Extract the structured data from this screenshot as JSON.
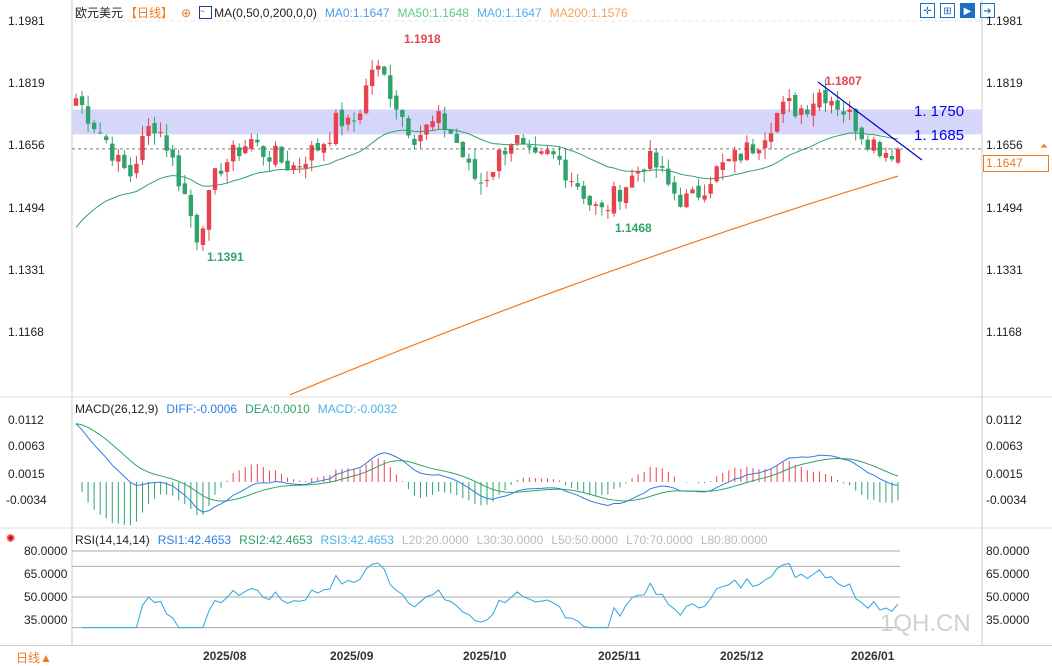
{
  "header": {
    "symbol": "欧元美元",
    "period": "【日线】",
    "ma_title": "MA(0,50,0,200,0,0)",
    "ma0": "MA0:1.1647",
    "ma50": "MA50:1.1648",
    "ma0b": "MA0:1.1647",
    "ma200": "MA200:1.1576"
  },
  "toolbar": [
    "crosshair-icon",
    "zoom-range-icon",
    "play-icon",
    "exit-icon"
  ],
  "colors": {
    "up": "#e8424f",
    "down": "#2fa36b",
    "ma50": "#2fa36b",
    "ma200": "#f07a1e",
    "zone": "#d6d6fb",
    "trend": "#0000cc",
    "diff": "#2d7fe6",
    "dea": "#2fa36b",
    "rsi": "#2aa6e0"
  },
  "chart_data": [
    {
      "type": "candlestick",
      "title": "欧元美元",
      "yticks": [
        "1.1981",
        "1.1819",
        "1.1656",
        "1.1494",
        "1.1331",
        "1.1168"
      ],
      "ylim": [
        1.098,
        1.2
      ],
      "close_samples": [
        1.178,
        1.174,
        1.17,
        1.166,
        1.16,
        1.158,
        1.166,
        1.172,
        1.168,
        1.16,
        1.152,
        1.142,
        1.15,
        1.16,
        1.162,
        1.165,
        1.167,
        1.164,
        1.163,
        1.161,
        1.16,
        1.163,
        1.165,
        1.168,
        1.173,
        1.17,
        1.176,
        1.186,
        1.184,
        1.178,
        1.172,
        1.168,
        1.17,
        1.172,
        1.17,
        1.165,
        1.158,
        1.156,
        1.16,
        1.165,
        1.168,
        1.163,
        1.161,
        1.163,
        1.162,
        1.158,
        1.155,
        1.15,
        1.148,
        1.152,
        1.155,
        1.158,
        1.162,
        1.16,
        1.155,
        1.152,
        1.151,
        1.154,
        1.158,
        1.16,
        1.162,
        1.164,
        1.166,
        1.17,
        1.174,
        1.176,
        1.175,
        1.177,
        1.18,
        1.178,
        1.175,
        1.172,
        1.168,
        1.166,
        1.164,
        1.1647
      ],
      "annotations": {
        "high1": "1.1918",
        "low1": "1.1391",
        "low2": "1.1468",
        "high2": "1.1807",
        "zone_top": "1. 1750",
        "zone_bottom": "1. 1685",
        "last_price": "1.1647"
      },
      "ma200_range": [
        1.1005,
        1.1576
      ]
    },
    {
      "type": "line",
      "title": "MACD(26,12,9)",
      "diff": "DIFF:-0.0006",
      "dea": "DEA:0.0010",
      "macd": "MACD:-0.0032",
      "yticks": [
        "0.0112",
        "0.0063",
        "0.0015",
        "-0.0034"
      ]
    },
    {
      "type": "line",
      "title": "RSI(14,14,14)",
      "rsi1": "RSI1:42.4653",
      "rsi2": "RSI2:42.4653",
      "rsi3": "RSI3:42.4653",
      "l20": "L20:20.0000",
      "l30": "L30:30.0000",
      "l50": "L50:50.0000",
      "l70": "L70:70.0000",
      "l80": "L80:80.0000",
      "yticks": [
        "80.0000",
        "65.0000",
        "50.0000",
        "35.0000"
      ]
    }
  ],
  "xaxis": [
    "2025/08",
    "2025/09",
    "2025/10",
    "2025/11",
    "2025/12",
    "2026/01"
  ],
  "footer": {
    "period": "日线▲",
    "watermark": "1QH.CN"
  }
}
